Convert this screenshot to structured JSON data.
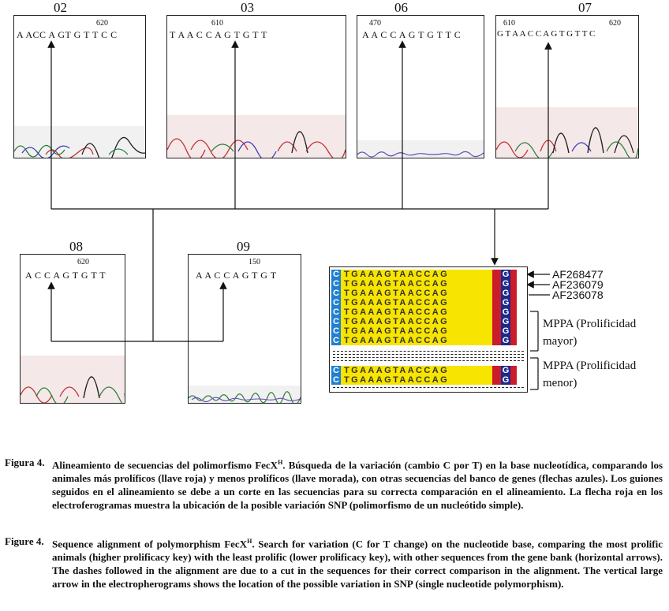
{
  "panels": [
    {
      "id": "02",
      "title": "02",
      "position": "620",
      "sequence": "A ACC A  GT  G T T C C"
    },
    {
      "id": "03",
      "title": "03",
      "position": "610",
      "sequence": "T  A  A  C  C  A   G   T  G   T   T"
    },
    {
      "id": "06",
      "title": "06",
      "position": "470",
      "sequence": "A  A  C  C  A G T G T T C"
    },
    {
      "id": "07",
      "title": "07",
      "position_left": "610",
      "position_right": "620",
      "sequence": "G T A A C C A G T G T T C"
    },
    {
      "id": "08",
      "title": "08",
      "position": "620",
      "sequence": "A C  C A   G T G T  T"
    },
    {
      "id": "09",
      "title": "09",
      "position": "150",
      "sequence": "A A C C A G T G T"
    }
  ],
  "alignment": {
    "first_base": "C",
    "main_sequence": "TGAAAGTAACCAG",
    "snp_base": "G",
    "rows_group1": 8,
    "rows_group2": 2
  },
  "accessions": [
    "AF268477",
    "AF236079",
    "AF236078"
  ],
  "groups": {
    "higher": "MPPA (Prolificidad mayor)",
    "lower": "MPPA (Prolificidad menor)"
  },
  "colors": {
    "blue": "#1f7fd0",
    "yellow": "#f7e400",
    "red": "#cc1b2b",
    "navy": "#1c2a8c"
  },
  "caption_es": {
    "label": "Figura 4.",
    "text_before_sup": "Alineamiento de secuencias del polimorfismo FecX",
    "sup": "H",
    "text_after_sup": ". Búsqueda de la variación (cambio C por T) en la base nucleotídica, comparando los animales más prolíficos (llave roja) y menos prolíficos (llave morada), con otras secuencias del banco de genes (flechas azules). Los guiones seguidos en el alineamiento se debe a un corte en las secuencias para su correcta comparación en el alineamiento. La flecha roja en los electroferogramas muestra la ubicación de la posible variación SNP (polimorfismo de un nucleótido simple)."
  },
  "caption_en": {
    "label": "Figure 4.",
    "text_before_sup": "Sequence alignment of polymorphism FecX",
    "sup": "H",
    "text_after_sup": ". Search for variation (C for T change) on the nucleotide base, comparing the most prolific animals (higher prolificacy key) with the least prolific (lower prolificacy key), with other sequences from the gene bank (horizontal arrows). The dashes followed in the alignment are due to a cut in the sequences for their correct comparison in the alignment. The vertical large arrow in the electropherograms shows the location of the possible variation in SNP (single nucleotide polymorphism)."
  }
}
